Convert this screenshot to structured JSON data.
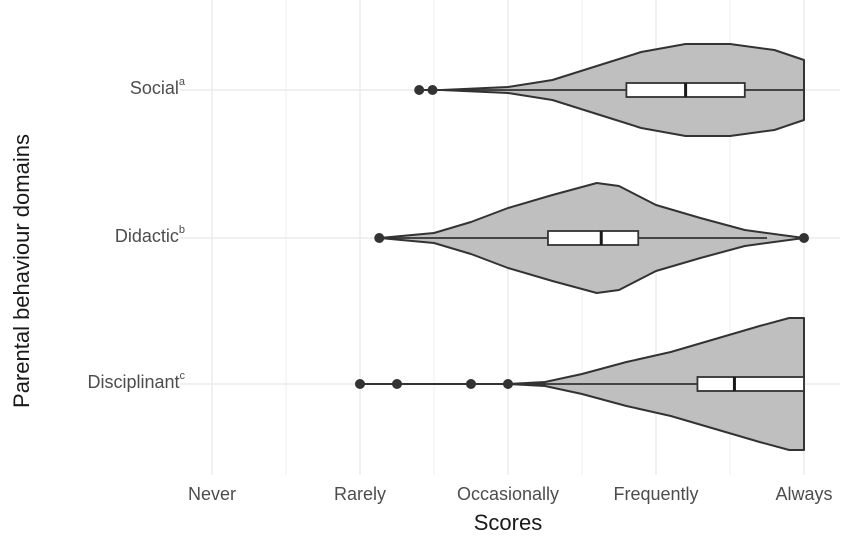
{
  "chart_data": {
    "type": "violin",
    "title": "",
    "xlabel": "Scores",
    "ylabel": "Parental behaviour domains",
    "x_ticks": [
      "Never",
      "Rarely",
      "Occasionally",
      "Frequently",
      "Always"
    ],
    "x_tick_values": [
      1,
      2,
      3,
      4,
      5
    ],
    "xlim": [
      1,
      5
    ],
    "grid": true,
    "categories": [
      "Social",
      "Didactic",
      "Disciplinant"
    ],
    "category_superscripts": [
      "a",
      "b",
      "c"
    ],
    "series": [
      {
        "name": "Social",
        "superscript": "a",
        "box": {
          "q1": 3.8,
          "median": 4.2,
          "q3": 4.6,
          "whisker_low": 2.55,
          "whisker_high": 5.0
        },
        "outliers": [
          2.4,
          2.49
        ],
        "density_range": [
          2.55,
          5.0
        ],
        "density_peak": 4.3
      },
      {
        "name": "Didactic",
        "superscript": "b",
        "box": {
          "q1": 3.27,
          "median": 3.63,
          "q3": 3.88,
          "whisker_low": 2.2,
          "whisker_high": 4.75
        },
        "outliers": [
          2.13,
          5.0
        ],
        "density_range": [
          2.13,
          5.0
        ],
        "density_peak": 3.6
      },
      {
        "name": "Disciplinant",
        "superscript": "c",
        "box": {
          "q1": 4.28,
          "median": 4.53,
          "q3": 5.0,
          "whisker_low": 3.25,
          "whisker_high": 5.0
        },
        "outliers": [
          2.0,
          2.25,
          2.75,
          3.0
        ],
        "density_range": [
          3.0,
          5.0
        ],
        "density_peak": 5.0
      }
    ],
    "colors": {
      "violin_fill": "#bfbfbf",
      "outline": "#333333",
      "box_fill": "#ffffff",
      "grid": "#ebebeb"
    }
  },
  "axis": {
    "y_title": "Parental behaviour domains",
    "x_title": "Scores",
    "y_labels": [
      {
        "name": "Social",
        "sup": "a"
      },
      {
        "name": "Didactic",
        "sup": "b"
      },
      {
        "name": "Disciplinant",
        "sup": "c"
      }
    ],
    "x_labels": [
      "Never",
      "Rarely",
      "Occasionally",
      "Frequently",
      "Always"
    ]
  }
}
